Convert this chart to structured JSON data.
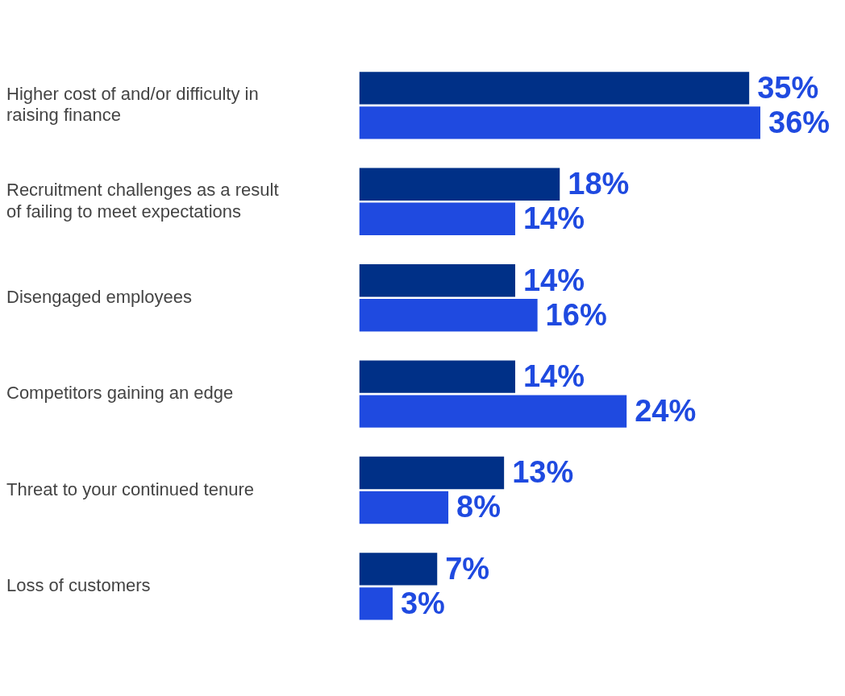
{
  "chart_data": {
    "type": "bar",
    "orientation": "horizontal",
    "categories": [
      "Higher cost of and/or difficulty in raising finance",
      "Recruitment challenges as a result of failing to meet expectations",
      "Disengaged employees",
      "Competitors gaining an edge",
      "Threat to your continued tenure",
      "Loss of customers"
    ],
    "series": [
      {
        "color": "#003087",
        "values": [
          35,
          18,
          14,
          14,
          13,
          7
        ],
        "value_labels": [
          "35%",
          "18%",
          "14%",
          "14%",
          "13%",
          "7%"
        ]
      },
      {
        "color": "#1f4ae0",
        "values": [
          36,
          14,
          16,
          24,
          8,
          3
        ],
        "value_labels": [
          "36%",
          "14%",
          "16%",
          "24%",
          "8%",
          "3%"
        ]
      }
    ],
    "legend": false
  }
}
